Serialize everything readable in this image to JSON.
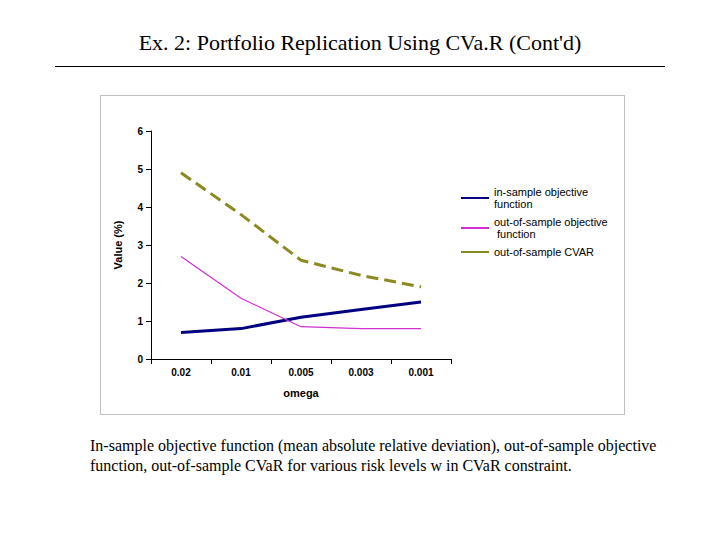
{
  "chart_data": {
    "type": "line",
    "title": "Ex. 2: Portfolio Replication Using CVa.R (Cont'd)",
    "annotations": [
      "In-sample objective function (mean absolute relative deviation), out-of-sample objective function, out-of-sample CVaR for various risk levels w in CVaR constraint."
    ],
    "x_label": "omega",
    "y_label": "Value (%)",
    "categories": [
      "0.02",
      "0.01",
      "0.005",
      "0.003",
      "0.001"
    ],
    "series": [
      {
        "name": "in-sample objective function",
        "color": "#000080",
        "line_style": "solid",
        "values": [
          0.7,
          0.8,
          1.1,
          1.3,
          1.5
        ]
      },
      {
        "name": "out-of-sample objective function",
        "color": "#d030d0",
        "line_style": "solid",
        "values": [
          2.7,
          1.6,
          0.85,
          0.8,
          0.8
        ]
      },
      {
        "name": "out-of-sample CVAR",
        "color": "#8a8a20",
        "line_style": "dashed",
        "values": [
          4.9,
          3.8,
          2.6,
          2.2,
          1.9
        ]
      }
    ],
    "ylim": [
      0,
      6
    ],
    "yticks": [
      0,
      1,
      2,
      3,
      4,
      5,
      6
    ],
    "grid": false,
    "legend": "right"
  }
}
